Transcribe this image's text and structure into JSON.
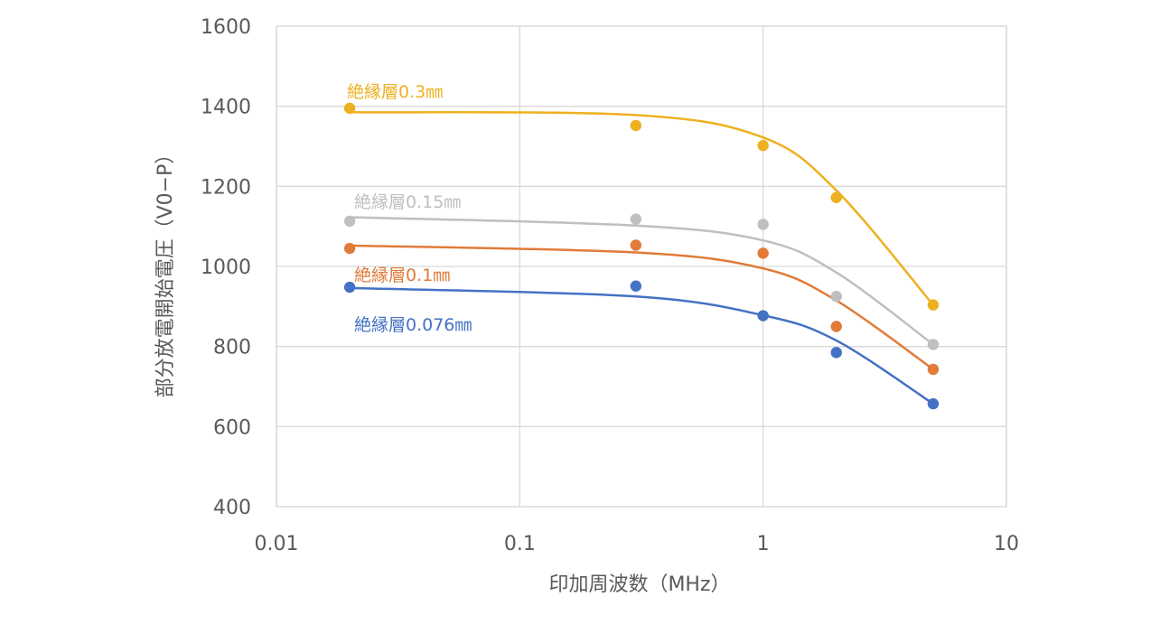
{
  "chart_data": {
    "type": "scatter",
    "title": "",
    "xlabel": "印加周波数（MHz）",
    "ylabel": "部分放電開始電圧（V0−P）",
    "x_scale": "log",
    "xlim": [
      0.01,
      10
    ],
    "ylim": [
      400,
      1600
    ],
    "x_ticks": [
      0.01,
      0.1,
      1,
      10
    ],
    "x_tick_labels": [
      "0.01",
      "0.1",
      "1",
      "10"
    ],
    "y_ticks": [
      400,
      600,
      800,
      1000,
      1200,
      1400,
      1600
    ],
    "y_tick_labels": [
      "400",
      "600",
      "800",
      "1000",
      "1200",
      "1400",
      "1600"
    ],
    "grid": true,
    "legend": "none",
    "series": [
      {
        "name": "絶縁層0.3㎜",
        "color": "#EDB120",
        "x": [
          0.02,
          0.3,
          1,
          2,
          5
        ],
        "y": [
          1395,
          1352,
          1302,
          1172,
          904
        ],
        "trend_y": [
          1385,
          1378,
          1322,
          1190,
          904
        ]
      },
      {
        "name": "絶縁層0.15㎜",
        "color": "#BFBFBF",
        "x": [
          0.02,
          0.3,
          1,
          2,
          5
        ],
        "y": [
          1113,
          1118,
          1105,
          925,
          805
        ],
        "trend_y": [
          1123,
          1102,
          1065,
          985,
          805
        ]
      },
      {
        "name": "絶縁層0.1㎜",
        "color": "#E07B39",
        "x": [
          0.02,
          0.3,
          1,
          2,
          5
        ],
        "y": [
          1045,
          1053,
          1033,
          850,
          743
        ],
        "trend_y": [
          1052,
          1035,
          995,
          915,
          743
        ]
      },
      {
        "name": "絶縁層0.076㎜",
        "color": "#4472C4",
        "x": [
          0.02,
          0.3,
          1,
          2,
          5
        ],
        "y": [
          948,
          951,
          877,
          785,
          657
        ],
        "trend_y": [
          946,
          925,
          878,
          815,
          657
        ]
      }
    ]
  }
}
